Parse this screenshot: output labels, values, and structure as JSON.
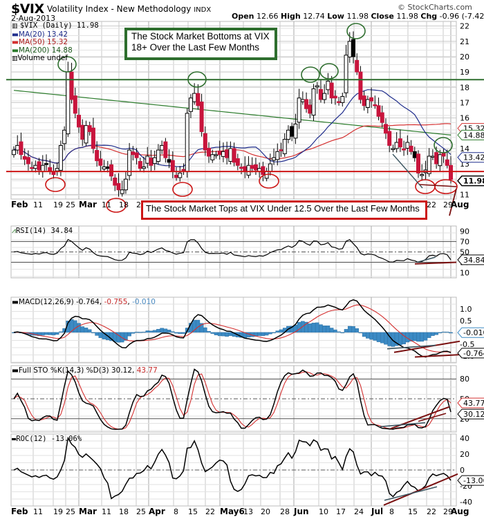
{
  "header": {
    "symbol": "$VIX",
    "name": "Volatility Index - New Methodology",
    "exchange": "INDX",
    "date": "2-Aug-2013",
    "credit": "© StockCharts.com",
    "open_label": "Open",
    "open": "12.66",
    "high_label": "High",
    "high": "12.74",
    "low_label": "Low",
    "low": "11.98",
    "close_label": "Close",
    "close": "11.98",
    "chg_label": "Chg",
    "chg": "-0.96 (-7.42%)"
  },
  "colors": {
    "up_candle": "#ffffff",
    "down_candle": "#c8143c",
    "black_candle": "#000000",
    "ma20": "#1f2d8c",
    "ma50": "#d43030",
    "ma200": "#2a7a2a",
    "grid": "#c8c8c8",
    "annotation_green": "#2e6e2e",
    "annotation_red": "#cc1515",
    "macd_hist": "#3b8ac4",
    "trend_dark": "#7a1010",
    "trend_slate": "#3b5560"
  },
  "legend": {
    "price": "$VIX (Daily) 11.98",
    "ma20": "MA(20) 13.42",
    "ma50": "MA(50) 15.32",
    "ma200": "MA(200) 14.88",
    "volume": "Volume undef"
  },
  "annotations": {
    "bottoms_box": "The Stock Market Bottoms at VIX 18+ Over the Last Few Months",
    "bottoms_line1": "The Stock Market Bottoms at VIX",
    "bottoms_line2": "18+ Over the Last Few Months",
    "tops_box": "The Stock Market Tops at VIX Under 12.5 Over the Last Few Months"
  },
  "panels": {
    "rsi": {
      "label": "RSI(14) 34.84",
      "value_tag": "34.84",
      "ticks": [
        "90",
        "70",
        "50",
        "30",
        "10"
      ]
    },
    "macd": {
      "label": "MACD(12,26,9)",
      "v1": "-0.764",
      "v2": "-0.755",
      "v3": "-0.010",
      "ticks": [
        "1.0",
        "0.5",
        "-0.5",
        "-1.0"
      ],
      "tag1": "-0.010",
      "tag2": "-0.764"
    },
    "sto": {
      "label": "Full STO %K(14,3) %D(3)",
      "k": "30.12",
      "d": "43.77",
      "ticks": [
        "80",
        "50",
        "20"
      ],
      "tag_d": "43.77",
      "tag_k": "30.12"
    },
    "roc": {
      "label": "ROC(12) -13.06%",
      "ticks": [
        "40",
        "20",
        "0",
        "-20",
        "-40"
      ],
      "tag": "-13.06"
    }
  },
  "price_axis": {
    "ticks": [
      "22",
      "21",
      "20",
      "19",
      "18",
      "17",
      "16",
      "15",
      "14",
      "13",
      "12",
      "11"
    ],
    "tags": {
      "ma50": "15.32",
      "ma200": "14.88",
      "ma20": "13.42",
      "close": "11.98"
    }
  },
  "x_axis": {
    "labels": [
      {
        "t": "Feb",
        "bold": true
      },
      {
        "t": "11"
      },
      {
        "t": "19"
      },
      {
        "t": "25"
      },
      {
        "t": "Mar",
        "bold": true
      },
      {
        "t": "11"
      },
      {
        "t": "18"
      },
      {
        "t": "25"
      },
      {
        "t": "Apr",
        "bold": true
      },
      {
        "t": "8"
      },
      {
        "t": "15"
      },
      {
        "t": "22"
      },
      {
        "t": "May6",
        "bold": true
      },
      {
        "t": "13"
      },
      {
        "t": "20"
      },
      {
        "t": "28"
      },
      {
        "t": "Jun",
        "bold": true
      },
      {
        "t": "10"
      },
      {
        "t": "17"
      },
      {
        "t": "24"
      },
      {
        "t": "Jul",
        "bold": true
      },
      {
        "t": "8"
      },
      {
        "t": "15"
      },
      {
        "t": "22"
      },
      {
        "t": "29"
      },
      {
        "t": "Aug",
        "bold": true
      }
    ]
  },
  "chart_data": [
    {
      "type": "candlestick",
      "title": "$VIX Volatility Index - New Methodology (Daily)",
      "ylim": [
        10.7,
        22.3
      ],
      "x_range": [
        "2013-02-01",
        "2013-08-02"
      ],
      "reference_lines": [
        {
          "y": 18.5,
          "color": "green"
        },
        {
          "y": 12.5,
          "color": "red"
        }
      ],
      "last": {
        "open": 12.66,
        "high": 12.74,
        "low": 11.98,
        "close": 11.98,
        "change": -0.96,
        "change_pct": -7.42
      },
      "series": [
        {
          "name": "Close (approx)",
          "values": [
            13.9,
            14.2,
            13.6,
            13.3,
            13.0,
            12.7,
            12.9,
            12.6,
            12.9,
            13.0,
            12.5,
            12.3,
            12.7,
            14.2,
            15.2,
            19.0,
            17.2,
            16.3,
            15.4,
            14.6,
            15.5,
            15.1,
            14.0,
            13.2,
            12.9,
            12.8,
            12.7,
            12.2,
            11.6,
            11.3,
            11.3,
            12.0,
            13.9,
            13.6,
            13.4,
            12.7,
            12.8,
            13.5,
            12.9,
            13.4,
            13.9,
            14.2,
            13.4,
            13.1,
            12.5,
            12.1,
            12.4,
            12.6,
            16.3,
            17.3,
            17.6,
            16.8,
            15.1,
            13.9,
            13.5,
            13.6,
            13.6,
            13.6,
            13.8,
            13.4,
            14.0,
            13.1,
            12.9,
            12.7,
            12.5,
            12.9,
            12.7,
            12.6,
            12.7,
            12.3,
            12.5,
            13.0,
            13.4,
            13.8,
            13.9,
            14.6,
            15.2,
            14.8,
            15.6,
            17.3,
            17.2,
            16.6,
            16.3,
            17.9,
            18.1,
            17.2,
            17.6,
            18.4,
            17.3,
            17.3,
            17.0,
            17.4,
            20.1,
            21.0,
            20.0,
            19.0,
            17.2,
            16.8,
            17.2,
            17.1,
            16.8,
            16.1,
            15.7,
            15.0,
            14.2,
            14.0,
            14.4,
            14.1,
            13.9,
            14.4,
            13.8,
            13.4,
            12.4,
            12.3,
            12.6,
            13.5,
            13.5,
            13.0,
            13.6,
            13.5,
            12.9,
            11.98
          ]
        },
        {
          "name": "MA(20)",
          "last": 13.42
        },
        {
          "name": "MA(50)",
          "last": 15.32
        },
        {
          "name": "MA(200)",
          "last": 14.88
        }
      ]
    },
    {
      "type": "line",
      "title": "RSI(14)",
      "ylim": [
        0,
        100
      ],
      "reference_lines": [
        70,
        50,
        30
      ],
      "series": [
        {
          "name": "RSI(14)",
          "last": 34.84
        }
      ]
    },
    {
      "type": "line",
      "title": "MACD(12,26,9)",
      "ylim": [
        -1.3,
        1.5
      ],
      "series": [
        {
          "name": "MACD",
          "last": -0.764
        },
        {
          "name": "Signal",
          "last": -0.755
        },
        {
          "name": "Histogram",
          "last": -0.01,
          "type": "bar"
        }
      ]
    },
    {
      "type": "line",
      "title": "Full STO %K(14,3) %D(3)",
      "ylim": [
        0,
        100
      ],
      "reference_lines": [
        80,
        50,
        20
      ],
      "series": [
        {
          "name": "%K",
          "last": 30.12
        },
        {
          "name": "%D",
          "last": 43.77
        }
      ]
    },
    {
      "type": "line",
      "title": "ROC(12)",
      "ylim": [
        -45,
        45
      ],
      "reference_lines": [
        0
      ],
      "series": [
        {
          "name": "ROC(12)",
          "last": -13.06
        }
      ]
    }
  ]
}
